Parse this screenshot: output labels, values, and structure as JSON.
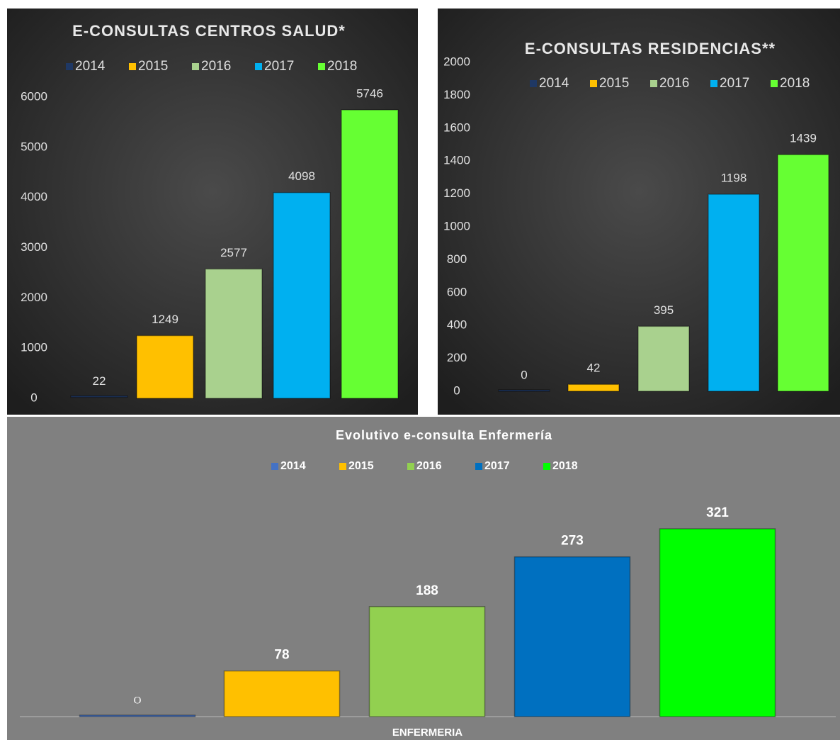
{
  "chart_data": [
    {
      "type": "bar",
      "title": "E-CONSULTAS CENTROS SALUD*",
      "series": [
        {
          "name": "2014",
          "color": "#1f3864",
          "values": [
            22
          ]
        },
        {
          "name": "2015",
          "color": "#ffc000",
          "values": [
            1249
          ]
        },
        {
          "name": "2016",
          "color": "#a9d18e",
          "values": [
            2577
          ]
        },
        {
          "name": "2017",
          "color": "#00b0f0",
          "values": [
            4098
          ]
        },
        {
          "name": "2018",
          "color": "#66ff33",
          "values": [
            5746
          ]
        }
      ],
      "ylim": [
        0,
        6000
      ],
      "yticks": [
        0,
        1000,
        2000,
        3000,
        4000,
        5000,
        6000
      ],
      "legend": "top"
    },
    {
      "type": "bar",
      "title": "E-CONSULTAS RESIDENCIAS**",
      "series": [
        {
          "name": "2014",
          "color": "#1f3864",
          "values": [
            0
          ]
        },
        {
          "name": "2015",
          "color": "#ffc000",
          "values": [
            42
          ]
        },
        {
          "name": "2016",
          "color": "#a9d18e",
          "values": [
            395
          ]
        },
        {
          "name": "2017",
          "color": "#00b0f0",
          "values": [
            1198
          ]
        },
        {
          "name": "2018",
          "color": "#66ff33",
          "values": [
            1439
          ]
        }
      ],
      "ylim": [
        0,
        2000
      ],
      "yticks": [
        0,
        200,
        400,
        600,
        800,
        1000,
        1200,
        1400,
        1600,
        1800,
        2000
      ],
      "legend": "top"
    },
    {
      "type": "bar",
      "title": "Evolutivo e-consulta  Enfermería",
      "categories": [
        "ENFERMERIA"
      ],
      "series": [
        {
          "name": "2014",
          "color": "#4472c4",
          "values": [
            0
          ],
          "value_labels": [
            "O"
          ]
        },
        {
          "name": "2015",
          "color": "#ffc000",
          "values": [
            78
          ]
        },
        {
          "name": "2016",
          "color": "#92d050",
          "values": [
            188
          ]
        },
        {
          "name": "2017",
          "color": "#0070c0",
          "values": [
            273
          ]
        },
        {
          "name": "2018",
          "color": "#00ff00",
          "values": [
            321
          ]
        }
      ],
      "legend": "top"
    }
  ]
}
